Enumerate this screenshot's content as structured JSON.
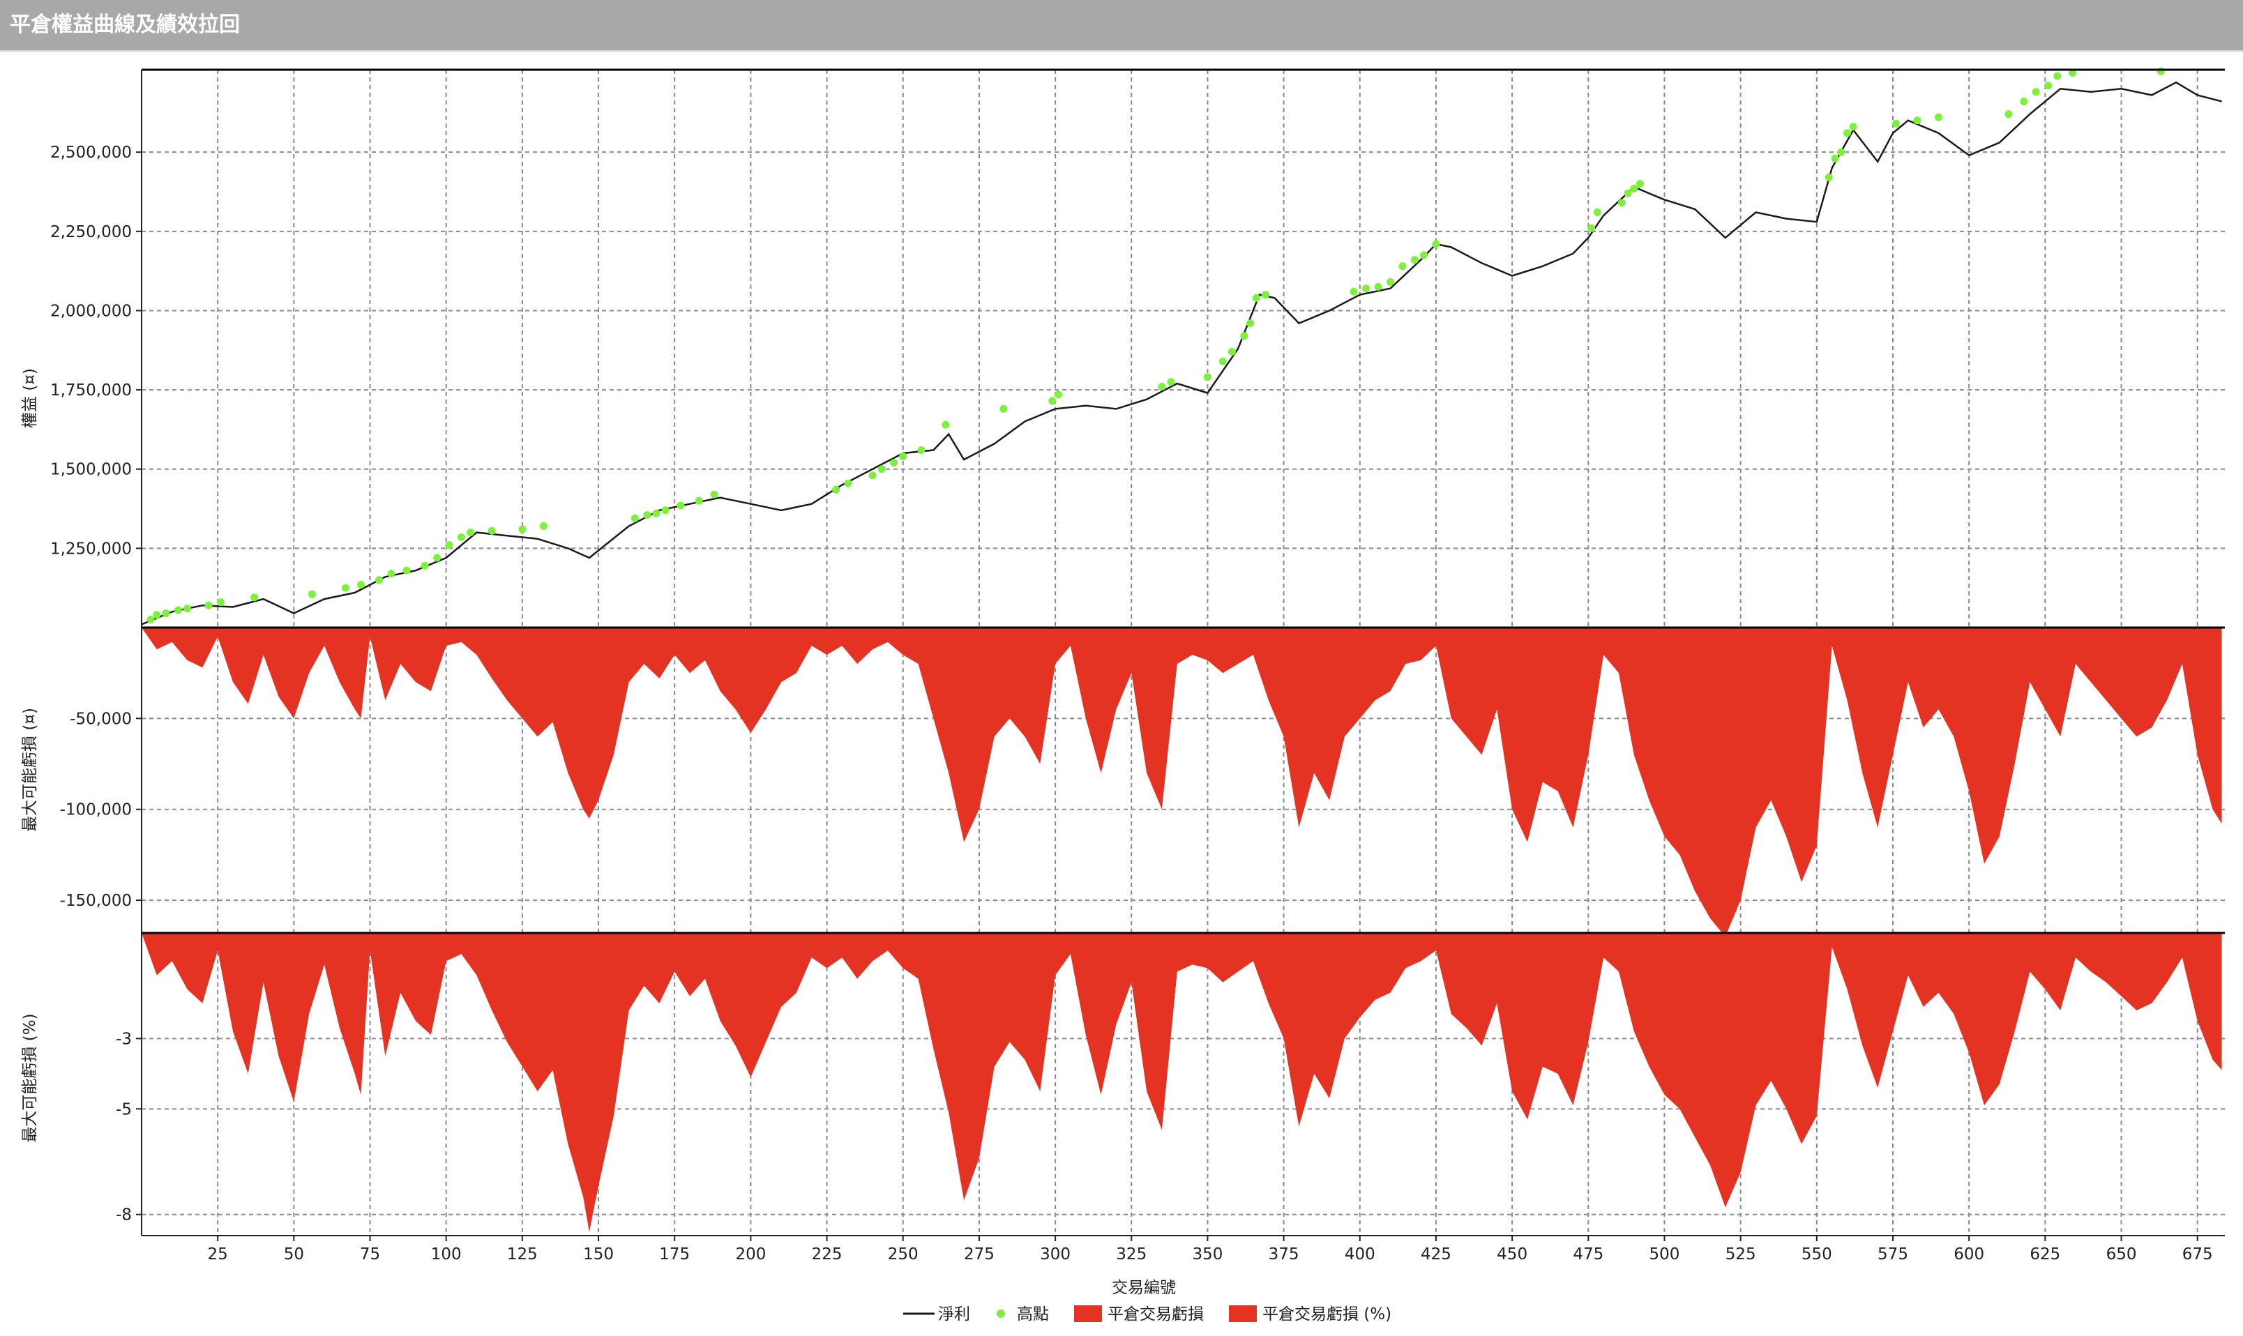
{
  "window": {
    "title": "平倉權益曲線及績效拉回"
  },
  "colors": {
    "equity_line": "#1a1a1a",
    "highs": "#7cf03a",
    "drawdown_fill": "#e53323",
    "grid": "#8a8a8a"
  },
  "chart_data": [
    {
      "type": "line",
      "panel": "equity",
      "ylabel": "權益 (¤)",
      "xlim": [
        0,
        684
      ],
      "ylim": [
        1000000,
        2760000
      ],
      "yticks": [
        1250000,
        1500000,
        1750000,
        2000000,
        2250000,
        2500000
      ],
      "ytick_labels": [
        "1,250,000",
        "1,500,000",
        "1,750,000",
        "2,000,000",
        "2,250,000",
        "2,500,000"
      ],
      "series": [
        {
          "name": "淨利",
          "x": [
            0,
            10,
            20,
            30,
            40,
            50,
            60,
            70,
            80,
            90,
            100,
            110,
            120,
            130,
            140,
            147,
            160,
            170,
            180,
            190,
            200,
            210,
            220,
            230,
            240,
            250,
            260,
            265,
            270,
            280,
            290,
            300,
            310,
            320,
            330,
            340,
            350,
            360,
            367,
            372,
            380,
            390,
            400,
            410,
            420,
            425,
            430,
            440,
            450,
            460,
            470,
            475,
            480,
            490,
            500,
            510,
            520,
            530,
            540,
            550,
            555,
            562,
            570,
            575,
            580,
            590,
            600,
            610,
            620,
            630,
            640,
            650,
            660,
            668,
            675,
            683
          ],
          "values": [
            1010000,
            1050000,
            1070000,
            1065000,
            1090000,
            1045000,
            1090000,
            1110000,
            1160000,
            1180000,
            1220000,
            1300000,
            1290000,
            1280000,
            1250000,
            1220000,
            1320000,
            1370000,
            1390000,
            1410000,
            1390000,
            1370000,
            1390000,
            1450000,
            1500000,
            1550000,
            1560000,
            1610000,
            1530000,
            1580000,
            1650000,
            1690000,
            1700000,
            1690000,
            1720000,
            1770000,
            1740000,
            1880000,
            2050000,
            2040000,
            1960000,
            2000000,
            2050000,
            2070000,
            2160000,
            2210000,
            2200000,
            2150000,
            2110000,
            2140000,
            2180000,
            2230000,
            2300000,
            2390000,
            2350000,
            2320000,
            2230000,
            2310000,
            2290000,
            2280000,
            2450000,
            2570000,
            2470000,
            2560000,
            2600000,
            2560000,
            2490000,
            2530000,
            2620000,
            2700000,
            2690000,
            2700000,
            2680000,
            2720000,
            2680000,
            2660000
          ]
        },
        {
          "name": "高點",
          "style": "markers",
          "x": [
            3,
            5,
            8,
            12,
            15,
            22,
            26,
            37,
            56,
            67,
            72,
            78,
            82,
            87,
            93,
            97,
            101,
            105,
            108,
            115,
            125,
            132,
            162,
            166,
            169,
            172,
            177,
            183,
            188,
            228,
            232,
            240,
            243,
            247,
            250,
            256,
            264,
            283,
            299,
            301,
            335,
            338,
            350,
            355,
            358,
            362,
            364,
            366,
            369,
            398,
            402,
            406,
            410,
            414,
            418,
            421,
            425,
            476,
            478,
            486,
            488,
            490,
            492,
            554,
            556,
            558,
            560,
            562,
            576,
            583,
            590,
            613,
            618,
            622,
            626,
            629,
            634,
            663
          ],
          "values": [
            1025000,
            1040000,
            1045000,
            1055000,
            1060000,
            1070000,
            1080000,
            1095000,
            1105000,
            1125000,
            1135000,
            1150000,
            1170000,
            1180000,
            1195000,
            1220000,
            1260000,
            1285000,
            1300000,
            1305000,
            1310000,
            1320000,
            1345000,
            1355000,
            1360000,
            1370000,
            1385000,
            1400000,
            1420000,
            1435000,
            1455000,
            1480000,
            1500000,
            1520000,
            1540000,
            1560000,
            1640000,
            1690000,
            1715000,
            1735000,
            1760000,
            1775000,
            1790000,
            1840000,
            1870000,
            1920000,
            1960000,
            2040000,
            2050000,
            2060000,
            2070000,
            2075000,
            2090000,
            2140000,
            2160000,
            2175000,
            2210000,
            2260000,
            2310000,
            2340000,
            2370000,
            2385000,
            2400000,
            2420000,
            2480000,
            2500000,
            2560000,
            2580000,
            2590000,
            2600000,
            2610000,
            2620000,
            2660000,
            2690000,
            2710000,
            2740000,
            2750000,
            2755000
          ]
        }
      ]
    },
    {
      "type": "area",
      "panel": "drawdown_amount",
      "ylabel": "最大可能虧損 (¤)",
      "xlim": [
        0,
        684
      ],
      "ylim": [
        -168000,
        0
      ],
      "yticks": [
        -50000,
        -100000,
        -150000
      ],
      "ytick_labels": [
        "-50,000",
        "-100,000",
        "-150,000"
      ],
      "series": [
        {
          "name": "平倉交易虧損",
          "x": [
            0,
            5,
            10,
            15,
            20,
            25,
            30,
            35,
            40,
            45,
            50,
            55,
            60,
            65,
            70,
            72,
            75,
            80,
            85,
            90,
            95,
            100,
            105,
            110,
            115,
            120,
            125,
            130,
            135,
            140,
            145,
            147,
            150,
            155,
            160,
            165,
            170,
            175,
            180,
            185,
            190,
            195,
            200,
            205,
            210,
            215,
            220,
            225,
            230,
            235,
            240,
            245,
            250,
            255,
            260,
            265,
            270,
            275,
            280,
            285,
            290,
            295,
            300,
            305,
            310,
            315,
            320,
            325,
            330,
            335,
            340,
            345,
            350,
            355,
            360,
            365,
            370,
            375,
            380,
            385,
            390,
            395,
            400,
            405,
            410,
            415,
            420,
            425,
            430,
            435,
            440,
            445,
            450,
            455,
            460,
            465,
            470,
            475,
            480,
            485,
            490,
            495,
            500,
            505,
            510,
            515,
            520,
            525,
            530,
            535,
            540,
            545,
            550,
            555,
            560,
            565,
            570,
            575,
            580,
            585,
            590,
            595,
            600,
            605,
            610,
            615,
            620,
            625,
            630,
            635,
            640,
            645,
            650,
            655,
            660,
            665,
            670,
            675,
            680,
            683
          ],
          "values": [
            0,
            -12000,
            -8000,
            -18000,
            -22000,
            -5000,
            -30000,
            -42000,
            -15000,
            -38000,
            -50000,
            -25000,
            -10000,
            -30000,
            -45000,
            -50000,
            -5000,
            -40000,
            -20000,
            -30000,
            -35000,
            -10000,
            -8000,
            -15000,
            -28000,
            -40000,
            -50000,
            -60000,
            -52000,
            -80000,
            -100000,
            -105000,
            -95000,
            -70000,
            -30000,
            -20000,
            -28000,
            -15000,
            -25000,
            -18000,
            -35000,
            -45000,
            -58000,
            -45000,
            -30000,
            -25000,
            -10000,
            -15000,
            -10000,
            -20000,
            -12000,
            -8000,
            -15000,
            -20000,
            -50000,
            -80000,
            -118000,
            -100000,
            -60000,
            -50000,
            -60000,
            -75000,
            -20000,
            -10000,
            -50000,
            -80000,
            -45000,
            -25000,
            -80000,
            -100000,
            -20000,
            -15000,
            -18000,
            -25000,
            -20000,
            -15000,
            -40000,
            -60000,
            -110000,
            -80000,
            -95000,
            -60000,
            -50000,
            -40000,
            -35000,
            -20000,
            -18000,
            -10000,
            -50000,
            -60000,
            -70000,
            -45000,
            -100000,
            -118000,
            -85000,
            -90000,
            -110000,
            -70000,
            -15000,
            -25000,
            -70000,
            -95000,
            -115000,
            -125000,
            -145000,
            -160000,
            -170000,
            -150000,
            -110000,
            -95000,
            -115000,
            -140000,
            -120000,
            -10000,
            -40000,
            -80000,
            -110000,
            -70000,
            -30000,
            -55000,
            -45000,
            -60000,
            -90000,
            -130000,
            -115000,
            -75000,
            -30000,
            -45000,
            -60000,
            -20000,
            -30000,
            -40000,
            -50000,
            -60000,
            -55000,
            -40000,
            -20000,
            -70000,
            -100000,
            -108000
          ]
        }
      ]
    },
    {
      "type": "area",
      "panel": "drawdown_percent",
      "ylabel": "最大可能虧損 (%)",
      "xlabel": "交易編號",
      "xlim": [
        0,
        684
      ],
      "ylim": [
        -8.6,
        0
      ],
      "yticks": [
        -3,
        -5,
        -8
      ],
      "ytick_labels": [
        "-3",
        "-5",
        "-8"
      ],
      "xticks": [
        25,
        50,
        75,
        100,
        125,
        150,
        175,
        200,
        225,
        250,
        275,
        300,
        325,
        350,
        375,
        400,
        425,
        450,
        475,
        500,
        525,
        550,
        575,
        600,
        625,
        650,
        675
      ],
      "xtick_labels": [
        "25",
        "50",
        "75",
        "100",
        "125",
        "150",
        "175",
        "200",
        "225",
        "250",
        "275",
        "300",
        "325",
        "350",
        "375",
        "400",
        "425",
        "450",
        "475",
        "500",
        "525",
        "550",
        "575",
        "600",
        "625",
        "650",
        "675"
      ],
      "series": [
        {
          "name": "平倉交易虧損 (%)",
          "x": [
            0,
            5,
            10,
            15,
            20,
            25,
            30,
            35,
            40,
            45,
            50,
            55,
            60,
            65,
            70,
            72,
            75,
            80,
            85,
            90,
            95,
            100,
            105,
            110,
            115,
            120,
            125,
            130,
            135,
            140,
            145,
            147,
            150,
            155,
            160,
            165,
            170,
            175,
            180,
            185,
            190,
            195,
            200,
            205,
            210,
            215,
            220,
            225,
            230,
            235,
            240,
            245,
            250,
            255,
            260,
            265,
            270,
            275,
            280,
            285,
            290,
            295,
            300,
            305,
            310,
            315,
            320,
            325,
            330,
            335,
            340,
            345,
            350,
            355,
            360,
            365,
            370,
            375,
            380,
            385,
            390,
            395,
            400,
            405,
            410,
            415,
            420,
            425,
            430,
            435,
            440,
            445,
            450,
            455,
            460,
            465,
            470,
            475,
            480,
            485,
            490,
            495,
            500,
            505,
            510,
            515,
            520,
            525,
            530,
            535,
            540,
            545,
            550,
            555,
            560,
            565,
            570,
            575,
            580,
            585,
            590,
            595,
            600,
            605,
            610,
            615,
            620,
            625,
            630,
            635,
            640,
            645,
            650,
            655,
            660,
            665,
            670,
            675,
            680,
            683
          ],
          "values": [
            0,
            -1.2,
            -0.8,
            -1.6,
            -2.0,
            -0.5,
            -2.8,
            -4.0,
            -1.4,
            -3.5,
            -4.8,
            -2.3,
            -0.9,
            -2.7,
            -4.0,
            -4.6,
            -0.5,
            -3.5,
            -1.7,
            -2.5,
            -2.9,
            -0.8,
            -0.6,
            -1.2,
            -2.2,
            -3.1,
            -3.8,
            -4.5,
            -3.9,
            -6.0,
            -7.5,
            -8.5,
            -7.2,
            -5.2,
            -2.2,
            -1.5,
            -2.0,
            -1.1,
            -1.8,
            -1.3,
            -2.5,
            -3.2,
            -4.1,
            -3.1,
            -2.1,
            -1.7,
            -0.7,
            -1.0,
            -0.7,
            -1.3,
            -0.8,
            -0.5,
            -1.0,
            -1.3,
            -3.3,
            -5.1,
            -7.6,
            -6.4,
            -3.8,
            -3.1,
            -3.6,
            -4.5,
            -1.2,
            -0.6,
            -2.9,
            -4.6,
            -2.6,
            -1.4,
            -4.5,
            -5.6,
            -1.1,
            -0.9,
            -1.0,
            -1.4,
            -1.1,
            -0.8,
            -2.0,
            -3.0,
            -5.5,
            -4.0,
            -4.7,
            -3.0,
            -2.4,
            -1.9,
            -1.7,
            -1.0,
            -0.8,
            -0.5,
            -2.3,
            -2.7,
            -3.2,
            -2.0,
            -4.5,
            -5.3,
            -3.8,
            -4.0,
            -4.9,
            -3.1,
            -0.7,
            -1.1,
            -2.8,
            -3.8,
            -4.6,
            -5.0,
            -5.8,
            -6.6,
            -7.8,
            -6.8,
            -4.9,
            -4.2,
            -5.0,
            -6.0,
            -5.2,
            -0.4,
            -1.6,
            -3.2,
            -4.4,
            -2.8,
            -1.2,
            -2.1,
            -1.7,
            -2.3,
            -3.4,
            -4.9,
            -4.3,
            -2.8,
            -1.1,
            -1.6,
            -2.2,
            -0.7,
            -1.1,
            -1.4,
            -1.8,
            -2.2,
            -2.0,
            -1.4,
            -0.7,
            -2.5,
            -3.6,
            -3.9
          ]
        }
      ]
    }
  ],
  "legend": [
    {
      "name": "淨利",
      "symbol": "line"
    },
    {
      "name": "高點",
      "symbol": "dot"
    },
    {
      "name": "平倉交易虧損",
      "symbol": "box"
    },
    {
      "name": "平倉交易虧損 (%)",
      "symbol": "box"
    }
  ]
}
